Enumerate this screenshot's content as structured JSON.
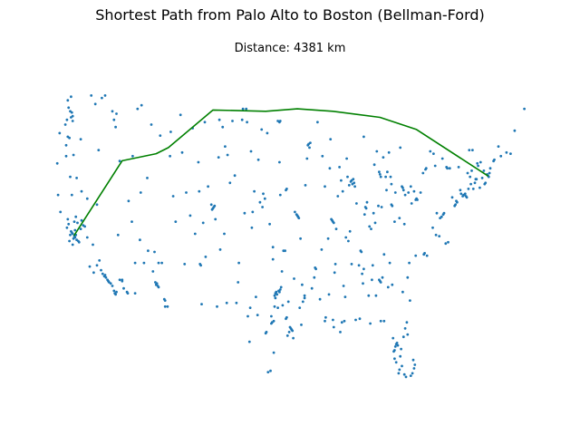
{
  "chart_data": {
    "type": "scatter",
    "title": "Shortest Path from Palo Alto to Boston (Bellman-Ford)",
    "subtitle": "Distance: 4381 km",
    "xlabel": "",
    "ylabel": "",
    "axes_visible": false,
    "grid": false,
    "xlim": [
      -125,
      -66
    ],
    "ylim": [
      24,
      50
    ],
    "colors": {
      "points": "#1f77b4",
      "path": "#008000"
    },
    "path": {
      "lon": [
        -122.14,
        -116.2,
        -112.0,
        -110.5,
        -105.0,
        -98.5,
        -94.6,
        -90.2,
        -84.4,
        -79.9,
        -71.06
      ],
      "lat": [
        37.44,
        43.62,
        44.2,
        44.7,
        47.8,
        47.7,
        47.9,
        47.7,
        47.2,
        46.2,
        42.36
      ]
    },
    "points": {
      "lon": [
        -122.1,
        -122.3,
        -122.0,
        -121.9,
        -122.4,
        -122.2,
        -121.8,
        -122.5,
        -121.6,
        -122.0,
        -121.5,
        -122.6,
        -121.3,
        -122.3,
        -122.1,
        -121.7,
        -122.8,
        -121.2,
        -120.8,
        -121.0,
        -122.9,
        -123.0,
        -122.7,
        -120.5,
        -121.9,
        -118.2,
        -118.4,
        -118.0,
        -117.9,
        -118.3,
        -117.8,
        -118.6,
        -117.6,
        -117.2,
        -117.1,
        -116.9,
        -117.4,
        -119.0,
        -119.7,
        -118.8,
        -117.0,
        -119.3,
        -120.2,
        -119.8,
        -116.5,
        -116.2,
        -115.6,
        -115.5,
        -114.6,
        -116.0,
        -122.4,
        -122.6,
        -122.5,
        -122.8,
        -123.0,
        -122.3,
        -123.2,
        -122.7,
        -122.9,
        -121.3,
        -123.1,
        -122.2,
        -122.6,
        -121.8,
        -122.4,
        -120.5,
        -119.3,
        -117.4,
        -117.0,
        -116.5,
        -119.5,
        -122.9,
        -118.3,
        -124.1,
        -123.8,
        -112.0,
        -111.9,
        -111.8,
        -112.1,
        -111.7,
        -116.2,
        -111.0,
        -110.9,
        -112.4,
        -113.5,
        -112.2,
        -108.5,
        -111.3,
        -110.6,
        -113.0,
        -114.0,
        -105.0,
        -104.9,
        -105.1,
        -104.8,
        -105.2,
        -104.7,
        -106.6,
        -106.5,
        -103.2,
        -106.7,
        -105.9,
        -110.9,
        -111.7,
        -109.6,
        -107.8,
        -114.6,
        -101.8,
        -100.4,
        -102.1,
        -99.7,
        -97.7,
        -97.8,
        -97.5,
        -98.5,
        -98.4,
        -97.2,
        -97.3,
        -96.8,
        -96.9,
        -96.7,
        -97.1,
        -97.4,
        -97.0,
        -96.6,
        -95.4,
        -95.3,
        -95.5,
        -95.2,
        -95.6,
        -95.1,
        -94.1,
        -94.0,
        -93.7,
        -101.9,
        -100.5,
        -106.4,
        -103.3,
        -104.5,
        -98.2,
        -97.9,
        -97.5,
        -96.0,
        -95.9,
        -95.8,
        -97.3,
        -97.4,
        -96.1,
        -97.6,
        -99.9,
        -94.6,
        -94.5,
        -94.7,
        -94.4,
        -90.2,
        -90.3,
        -90.1,
        -90.4,
        -93.3,
        -93.2,
        -93.1,
        -93.6,
        -92.1,
        -91.5,
        -96.7,
        -98.6,
        -96.8,
        -96.0,
        -95.9,
        -100.8,
        -100.3,
        -101.3,
        -96.7,
        -97.0,
        -96.8,
        -88.0,
        -87.9,
        -87.6,
        -87.7,
        -87.8,
        -88.2,
        -87.5,
        -89.4,
        -89.6,
        -88.4,
        -91.2,
        -90.6,
        -89.0,
        -86.2,
        -86.1,
        -86.0,
        -85.7,
        -85.5,
        -85.2,
        -84.5,
        -84.4,
        -84.3,
        -83.0,
        -82.9,
        -83.1,
        -83.7,
        -83.6,
        -83.0,
        -81.7,
        -81.6,
        -81.5,
        -80.0,
        -79.9,
        -80.2,
        -80.9,
        -82.5,
        -81.4,
        -84.2,
        -86.8,
        -86.7,
        -86.5,
        -87.0,
        -87.9,
        -88.1,
        -88.3,
        -89.9,
        -90.0,
        -90.1,
        -92.3,
        -92.4,
        -91.2,
        -90.2,
        -93.7,
        -91.1,
        -89.1,
        -88.7,
        -86.4,
        -85.3,
        -85.8,
        -84.5,
        -84.4,
        -84.3,
        -83.9,
        -83.2,
        -82.6,
        -81.0,
        -80.8,
        -80.0,
        -79.0,
        -78.6,
        -78.9,
        -77.9,
        -77.0,
        -76.3,
        -76.0,
        -77.4,
        -77.5,
        -77.1,
        -76.6,
        -76.5,
        -76.8,
        -75.2,
        -75.1,
        -75.5,
        -74.9,
        -74.2,
        -74.1,
        -74.0,
        -73.9,
        -73.8,
        -73.7,
        -74.4,
        -74.5,
        -75.0,
        -73.5,
        -73.2,
        -72.9,
        -72.7,
        -72.5,
        -72.1,
        -71.4,
        -71.5,
        -71.1,
        -71.0,
        -71.2,
        -70.9,
        -71.8,
        -72.6,
        -73.1,
        -70.3,
        -70.8,
        -69.8,
        -72.3,
        -72.0,
        -73.6,
        -73.4,
        -74.7,
        -75.8,
        -76.1,
        -76.2,
        -77.6,
        -78.8,
        -78.7,
        -79.8,
        -80.5,
        -81.3,
        -82.0,
        -83.5,
        -84.6,
        -85.0,
        -86.3,
        -87.3,
        -88.6,
        -89.8,
        -90.8,
        -91.6,
        -92.5,
        -93.0,
        -93.4,
        -94.2,
        -94.9,
        -95.7,
        -96.3,
        -96.5,
        -97.6,
        -98.0,
        -98.8,
        -99.2,
        -100.1,
        -100.7,
        -82.4,
        -82.3,
        -82.6,
        -82.5,
        -82.7,
        -82.2,
        -81.9,
        -81.8,
        -81.7,
        -82.1,
        -82.0,
        -82.4,
        -82.6,
        -81.4,
        -81.2,
        -80.6,
        -80.4,
        -80.2,
        -80.1,
        -80.3,
        -81.5,
        -81.0,
        -84.3,
        -83.9,
        -85.6,
        -81.1,
        -81.3,
        -82.8,
        -84.9,
        -86.9,
        -87.4,
        -88.8,
        -89.3,
        -80.7,
        -81.6,
        -82.9,
        -83.4,
        -84.1,
        -85.4,
        -86.6,
        -88.9,
        -90.7,
        -91.8,
        -92.8,
        -93.9,
        -94.3,
        -95.0,
        -96.4,
        -97.8,
        -99.5,
        -122.3,
        -122.5,
        -117.2,
        -112.6,
        -111.5,
        -110.2,
        -109.0,
        -107.5,
        -106.0,
        -104.2,
        -103.5,
        -102.6,
        -101.4,
        -100.9,
        -99.0,
        -98.3,
        -108.8,
        -116.9,
        -113.8,
        -114.3,
        -118.7,
        -120.0,
        -119.1,
        -123.9,
        -124.2,
        -123.1,
        -121.2,
        -106.8,
        -105.6,
        -109.9,
        -110.3,
        -113.9,
        -115.4,
        -104.3,
        -103.8,
        -102.9,
        -102.3,
        -101.1,
        -99.4,
        -98.9,
        -100.2,
        -103.6,
        -104.1,
        -106.2,
        -107.2,
        -108.3,
        -113.1,
        -114.9,
        -115.0,
        -116.7,
        -66.6,
        -67.8,
        -68.3,
        -68.8,
        -69.5,
        -70.4,
        -71.6,
        -72.4,
        -73.0,
        -73.3,
        -76.7,
        -77.8,
        -78.2,
        -79.4,
        -79.1,
        -80.6,
        -81.9,
        -83.3,
        -84.0,
        -84.8,
        -85.1,
        -86.4,
        -88.5,
        -89.2,
        -90.5
      ],
      "lat": [
        37.4,
        37.6,
        37.3,
        37.5,
        37.7,
        37.2,
        37.1,
        37.8,
        37.0,
        37.9,
        36.9,
        37.5,
        38.0,
        36.7,
        38.6,
        38.5,
        38.4,
        38.7,
        38.2,
        38.3,
        38.8,
        38.1,
        37.0,
        37.3,
        39.0,
        34.0,
        34.1,
        33.8,
        33.7,
        34.2,
        33.6,
        34.3,
        33.5,
        32.9,
        32.7,
        32.8,
        33.3,
        35.4,
        34.4,
        34.6,
        32.6,
        35.0,
        34.9,
        36.7,
        33.8,
        33.7,
        32.8,
        32.7,
        32.7,
        33.1,
        47.6,
        47.7,
        47.2,
        48.0,
        47.0,
        46.9,
        46.6,
        45.5,
        45.6,
        45.4,
        44.9,
        44.1,
        42.3,
        42.2,
        40.8,
        40.5,
        40.0,
        47.7,
        46.4,
        43.6,
        48.3,
        48.6,
        49.0,
        40.8,
        39.4,
        33.4,
        33.5,
        33.3,
        33.6,
        33.2,
        33.8,
        32.2,
        32.1,
        34.5,
        35.2,
        36.1,
        35.1,
        35.2,
        31.6,
        36.2,
        37.1,
        39.7,
        39.8,
        39.6,
        39.9,
        40.0,
        38.8,
        35.1,
        35.0,
        44.1,
        41.1,
        35.7,
        31.6,
        35.2,
        38.6,
        39.1,
        35.2,
        35.2,
        31.5,
        31.9,
        32.4,
        30.3,
        30.2,
        30.4,
        29.4,
        29.5,
        32.8,
        32.7,
        32.8,
        32.9,
        33.0,
        32.6,
        32.5,
        31.5,
        33.2,
        29.8,
        29.7,
        29.9,
        29.6,
        29.5,
        29.0,
        30.1,
        33.4,
        32.5,
        33.6,
        28.7,
        31.8,
        31.9,
        31.6,
        26.2,
        26.3,
        27.8,
        30.6,
        30.7,
        29.2,
        32.3,
        31.6,
        36.2,
        35.5,
        41.1,
        39.1,
        39.0,
        39.2,
        38.9,
        38.6,
        38.7,
        38.5,
        38.8,
        44.9,
        45.0,
        44.7,
        41.6,
        46.8,
        44.0,
        40.8,
        40.5,
        43.5,
        41.2,
        41.3,
        46.8,
        44.4,
        47.9,
        46.9,
        46.9,
        46.8,
        41.9,
        42.0,
        41.8,
        42.1,
        41.7,
        41.6,
        41.5,
        43.1,
        40.7,
        42.3,
        41.5,
        43.0,
        41.1,
        39.8,
        39.7,
        40.2,
        38.2,
        38.0,
        39.3,
        42.7,
        42.5,
        42.3,
        40.0,
        39.9,
        42.3,
        42.3,
        41.2,
        41.7,
        41.5,
        41.4,
        41.2,
        40.4,
        40.5,
        41.1,
        41.0,
        41.0,
        38.4,
        39.8,
        36.2,
        36.1,
        33.5,
        35.0,
        35.1,
        37.8,
        37.0,
        35.1,
        34.4,
        29.9,
        34.7,
        34.8,
        30.4,
        30.5,
        32.3,
        30.7,
        30.3,
        32.4,
        34.7,
        35.0,
        32.5,
        33.8,
        33.7,
        33.6,
        35.9,
        35.2,
        38.6,
        34.0,
        35.2,
        35.8,
        35.9,
        35.8,
        36.0,
        38.1,
        38.9,
        36.8,
        36.9,
        39.3,
        37.5,
        37.4,
        39.2,
        39.3,
        39.0,
        39.9,
        40.0,
        40.6,
        40.2,
        40.7,
        40.8,
        40.8,
        40.9,
        40.7,
        40.6,
        40.9,
        41.2,
        40.3,
        41.3,
        41.7,
        41.3,
        41.8,
        42.1,
        41.4,
        41.8,
        41.7,
        42.4,
        42.3,
        42.5,
        42.6,
        42.2,
        42.1,
        42.8,
        43.7,
        43.0,
        44.8,
        43.2,
        43.5,
        42.6,
        44.5,
        43.1,
        43.0,
        43.0,
        43.1,
        43.2,
        42.9,
        43.0,
        40.4,
        40.1,
        40.8,
        38.9,
        42.7,
        39.9,
        38.5,
        39.2,
        40.1,
        37.3,
        38.0,
        37.2,
        36.3,
        34.0,
        45.1,
        43.8,
        37.2,
        39.4,
        32.0,
        36.2,
        34.5,
        36.5,
        38.4,
        40.9,
        40.2,
        39.4,
        30.8,
        28.5,
        28.6,
        28.0,
        28.3,
        27.9,
        28.4,
        27.5,
        28.1,
        26.7,
        26.1,
        26.4,
        27.0,
        27.3,
        26.0,
        25.8,
        25.9,
        26.1,
        26.5,
        26.8,
        27.2,
        29.1,
        29.3,
        30.4,
        30.4,
        30.2,
        30.3,
        29.8,
        29.0,
        32.5,
        30.6,
        30.5,
        30.4,
        29.5,
        32.1,
        32.8,
        33.4,
        33.2,
        34.0,
        33.8,
        34.3,
        33.3,
        32.6,
        32.2,
        33.1,
        32.0,
        31.5,
        33.9,
        31.7,
        30.8,
        30.9,
        47.3,
        48.9,
        47.0,
        46.6,
        45.7,
        46.0,
        47.4,
        46.3,
        46.8,
        47.0,
        44.8,
        46.9,
        47.0,
        47.9,
        46.2,
        45.9,
        44.3,
        47.5,
        48.2,
        47.9,
        48.8,
        49.0,
        44.5,
        45.9,
        43.4,
        44.0,
        41.1,
        43.5,
        41.5,
        40.7,
        44.0,
        41.0,
        40.3,
        43.9,
        46.4,
        41.8,
        42.4,
        39.3,
        43.7,
        39.8,
        38.1,
        37.6,
        36.3,
        38.5,
        37.6,
        41.0,
        42.2,
        44.0,
        38.6,
        37.5,
        47.9,
        46.1,
        44.2,
        44.3,
        44.0,
        43.6,
        42.8,
        43.4,
        44.5,
        42.3,
        43.8,
        44.2,
        44.4,
        41.0,
        42.6,
        41.5,
        44.7,
        44.3,
        43.9,
        44.4,
        43.3,
        45.6,
        43.8,
        42.0,
        45.4
      ]
    }
  }
}
